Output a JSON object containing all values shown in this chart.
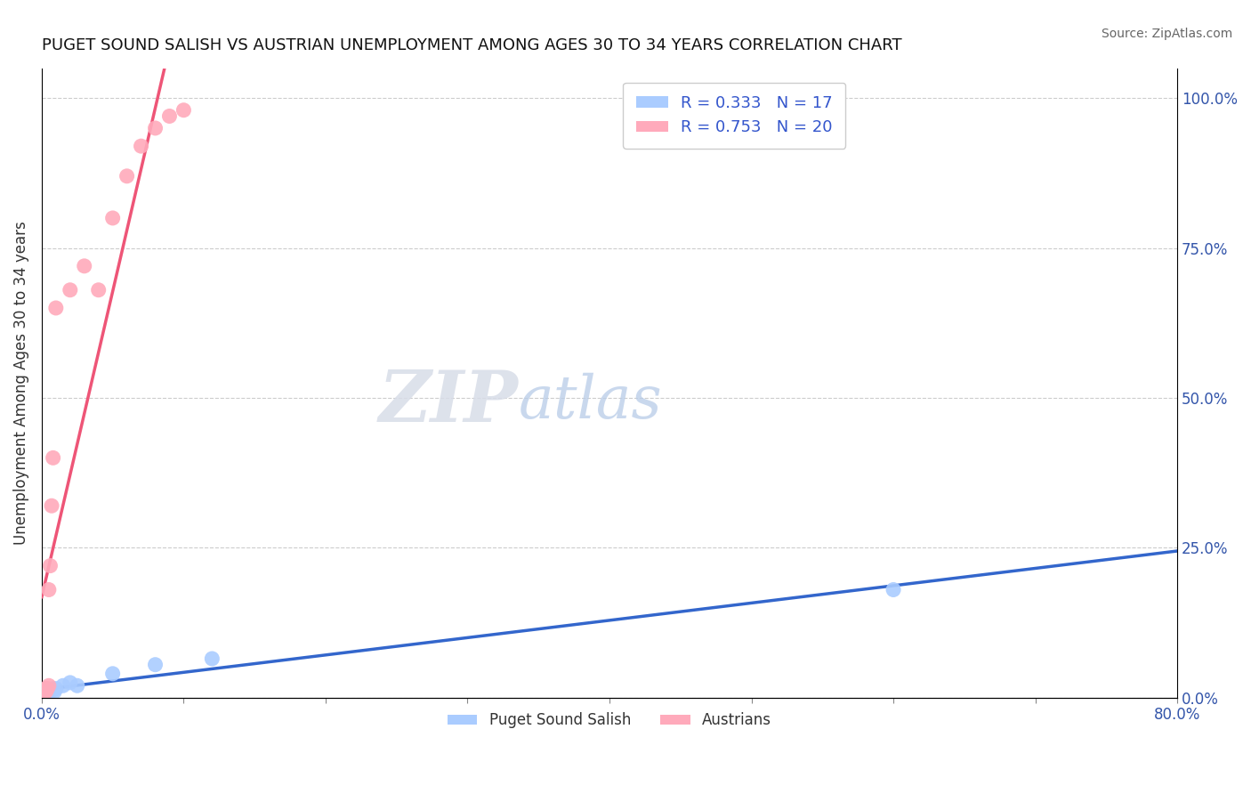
{
  "title": "PUGET SOUND SALISH VS AUSTRIAN UNEMPLOYMENT AMONG AGES 30 TO 34 YEARS CORRELATION CHART",
  "source": "Source: ZipAtlas.com",
  "xlabel": "",
  "ylabel": "Unemployment Among Ages 30 to 34 years",
  "xlim": [
    0.0,
    0.8
  ],
  "ylim": [
    0.0,
    1.05
  ],
  "xticks": [
    0.0,
    0.1,
    0.2,
    0.3,
    0.4,
    0.5,
    0.6,
    0.7,
    0.8
  ],
  "xticklabels": [
    "0.0%",
    "",
    "",
    "",
    "",
    "",
    "",
    "",
    "80.0%"
  ],
  "yticks_right": [
    0.0,
    0.25,
    0.5,
    0.75,
    1.0
  ],
  "yticklabels_right": [
    "0.0%",
    "25.0%",
    "50.0%",
    "75.0%",
    "100.0%"
  ],
  "blue_scatter_x": [
    0.001,
    0.002,
    0.003,
    0.004,
    0.005,
    0.006,
    0.007,
    0.008,
    0.009,
    0.01,
    0.015,
    0.02,
    0.025,
    0.05,
    0.08,
    0.12,
    0.6
  ],
  "blue_scatter_y": [
    0.005,
    0.005,
    0.008,
    0.01,
    0.01,
    0.01,
    0.012,
    0.015,
    0.01,
    0.015,
    0.02,
    0.025,
    0.02,
    0.04,
    0.055,
    0.065,
    0.18
  ],
  "pink_scatter_x": [
    0.001,
    0.002,
    0.003,
    0.003,
    0.004,
    0.005,
    0.005,
    0.006,
    0.007,
    0.008,
    0.01,
    0.02,
    0.03,
    0.04,
    0.05,
    0.06,
    0.07,
    0.08,
    0.09,
    0.1
  ],
  "pink_scatter_y": [
    0.005,
    0.01,
    0.01,
    0.015,
    0.015,
    0.02,
    0.18,
    0.22,
    0.32,
    0.4,
    0.65,
    0.68,
    0.72,
    0.68,
    0.8,
    0.87,
    0.92,
    0.95,
    0.97,
    0.98
  ],
  "blue_r": "0.333",
  "blue_n": "17",
  "pink_r": "0.753",
  "pink_n": "20",
  "blue_color": "#aaccff",
  "pink_color": "#ffaabb",
  "blue_line_color": "#3366cc",
  "pink_line_color": "#ee5577",
  "legend_label_blue": "Puget Sound Salish",
  "legend_label_pink": "Austrians",
  "background_color": "#ffffff",
  "grid_color": "#cccccc"
}
